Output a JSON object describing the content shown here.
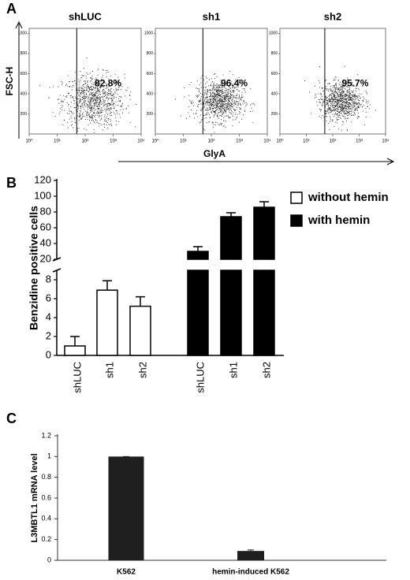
{
  "chart_data": [
    {
      "type": "flow",
      "panel": "A",
      "x_label": "GlyA",
      "y_label": "FSC-H",
      "xscale": "log",
      "xlim": [
        1,
        10000
      ],
      "xticks": [
        {
          "value": 1,
          "label": "10⁰"
        },
        {
          "value": 10,
          "label": "10¹"
        },
        {
          "value": 100,
          "label": "10²"
        },
        {
          "value": 1000,
          "label": "10³"
        },
        {
          "value": 10000,
          "label": "10⁴"
        }
      ],
      "ylim": [
        0,
        1050
      ],
      "yticks": [
        200,
        400,
        600,
        800,
        1000
      ],
      "plots": [
        {
          "title": "shLUC",
          "gate": 50,
          "value": 82.8,
          "value_label": "82.8%"
        },
        {
          "title": "sh1",
          "gate": 50,
          "value": 96.4,
          "value_label": "96.4%"
        },
        {
          "title": "sh2",
          "gate": 50,
          "value": 95.7,
          "value_label": "95.7%"
        }
      ]
    },
    {
      "type": "bar_broken",
      "panel": "B",
      "y_label": "Benzidine positive cells",
      "categories": [
        "shLUC",
        "sh1",
        "sh2"
      ],
      "segments": [
        {
          "ylim": [
            0,
            9
          ],
          "yticks": [
            0,
            2,
            4,
            6,
            8
          ]
        },
        {
          "ylim": [
            20,
            120
          ],
          "yticks": [
            20,
            40,
            60,
            80,
            100,
            120
          ]
        }
      ],
      "series": [
        {
          "name": "without hemin",
          "color": "#ffffff",
          "values": [
            1.0,
            6.9,
            5.2
          ],
          "errors": [
            1.0,
            1.0,
            1.0
          ]
        },
        {
          "name": "with hemin",
          "color": "#000000",
          "values": [
            30,
            74,
            86
          ],
          "errors": [
            6,
            5,
            7
          ]
        }
      ]
    },
    {
      "type": "bar",
      "panel": "C",
      "y_label": "L3MBTL1 mRNA level",
      "categories": [
        "K562",
        "hemin-induced K562"
      ],
      "values": [
        1,
        0.09
      ],
      "errors": [
        0,
        0.01
      ],
      "color": "#1f1f1f",
      "ylim": [
        0,
        1.2
      ],
      "yticks": [
        0,
        0.2,
        0.4,
        0.6,
        0.8,
        1,
        1.2
      ]
    }
  ]
}
